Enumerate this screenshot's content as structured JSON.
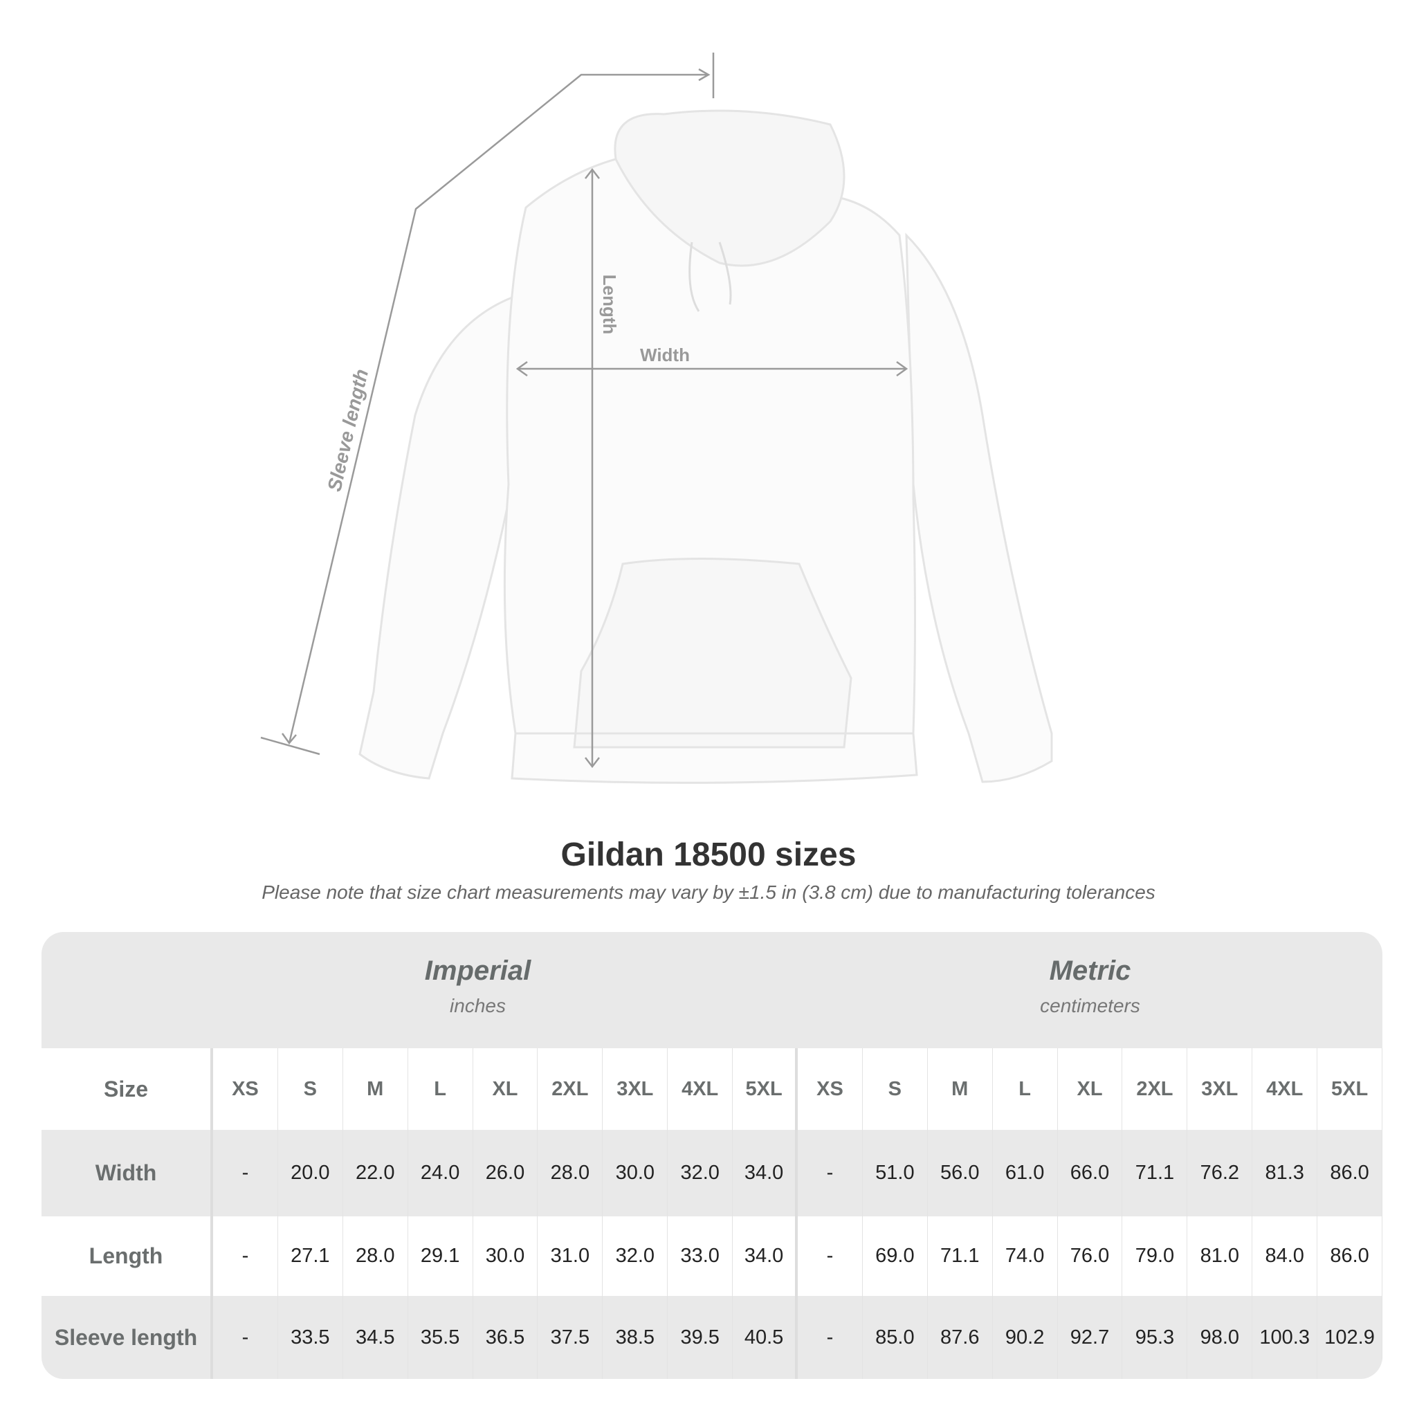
{
  "illustration": {
    "labels": {
      "width": "Width",
      "length": "Length",
      "sleeve": "Sleeve length"
    }
  },
  "title": "Gildan 18500 sizes",
  "subtitle": "Please note that size chart measurements may vary by ±1.5 in (3.8 cm) due to manufacturing tolerances",
  "table": {
    "imperial": {
      "name": "Imperial",
      "unit": "inches"
    },
    "metric": {
      "name": "Metric",
      "unit": "centimeters"
    },
    "size_label": "Size",
    "sizes": [
      "XS",
      "S",
      "M",
      "L",
      "XL",
      "2XL",
      "3XL",
      "4XL",
      "5XL"
    ],
    "rows": [
      {
        "label": "Width",
        "imperial": [
          "-",
          "20.0",
          "22.0",
          "24.0",
          "26.0",
          "28.0",
          "30.0",
          "32.0",
          "34.0"
        ],
        "metric": [
          "-",
          "51.0",
          "56.0",
          "61.0",
          "66.0",
          "71.1",
          "76.2",
          "81.3",
          "86.0"
        ]
      },
      {
        "label": "Length",
        "imperial": [
          "-",
          "27.1",
          "28.0",
          "29.1",
          "30.0",
          "31.0",
          "32.0",
          "33.0",
          "34.0"
        ],
        "metric": [
          "-",
          "69.0",
          "71.1",
          "74.0",
          "76.0",
          "79.0",
          "81.0",
          "84.0",
          "86.0"
        ]
      },
      {
        "label": "Sleeve length",
        "imperial": [
          "-",
          "33.5",
          "34.5",
          "35.5",
          "36.5",
          "37.5",
          "38.5",
          "39.5",
          "40.5"
        ],
        "metric": [
          "-",
          "85.0",
          "87.6",
          "90.2",
          "92.7",
          "95.3",
          "98.0",
          "100.3",
          "102.9"
        ]
      }
    ]
  }
}
